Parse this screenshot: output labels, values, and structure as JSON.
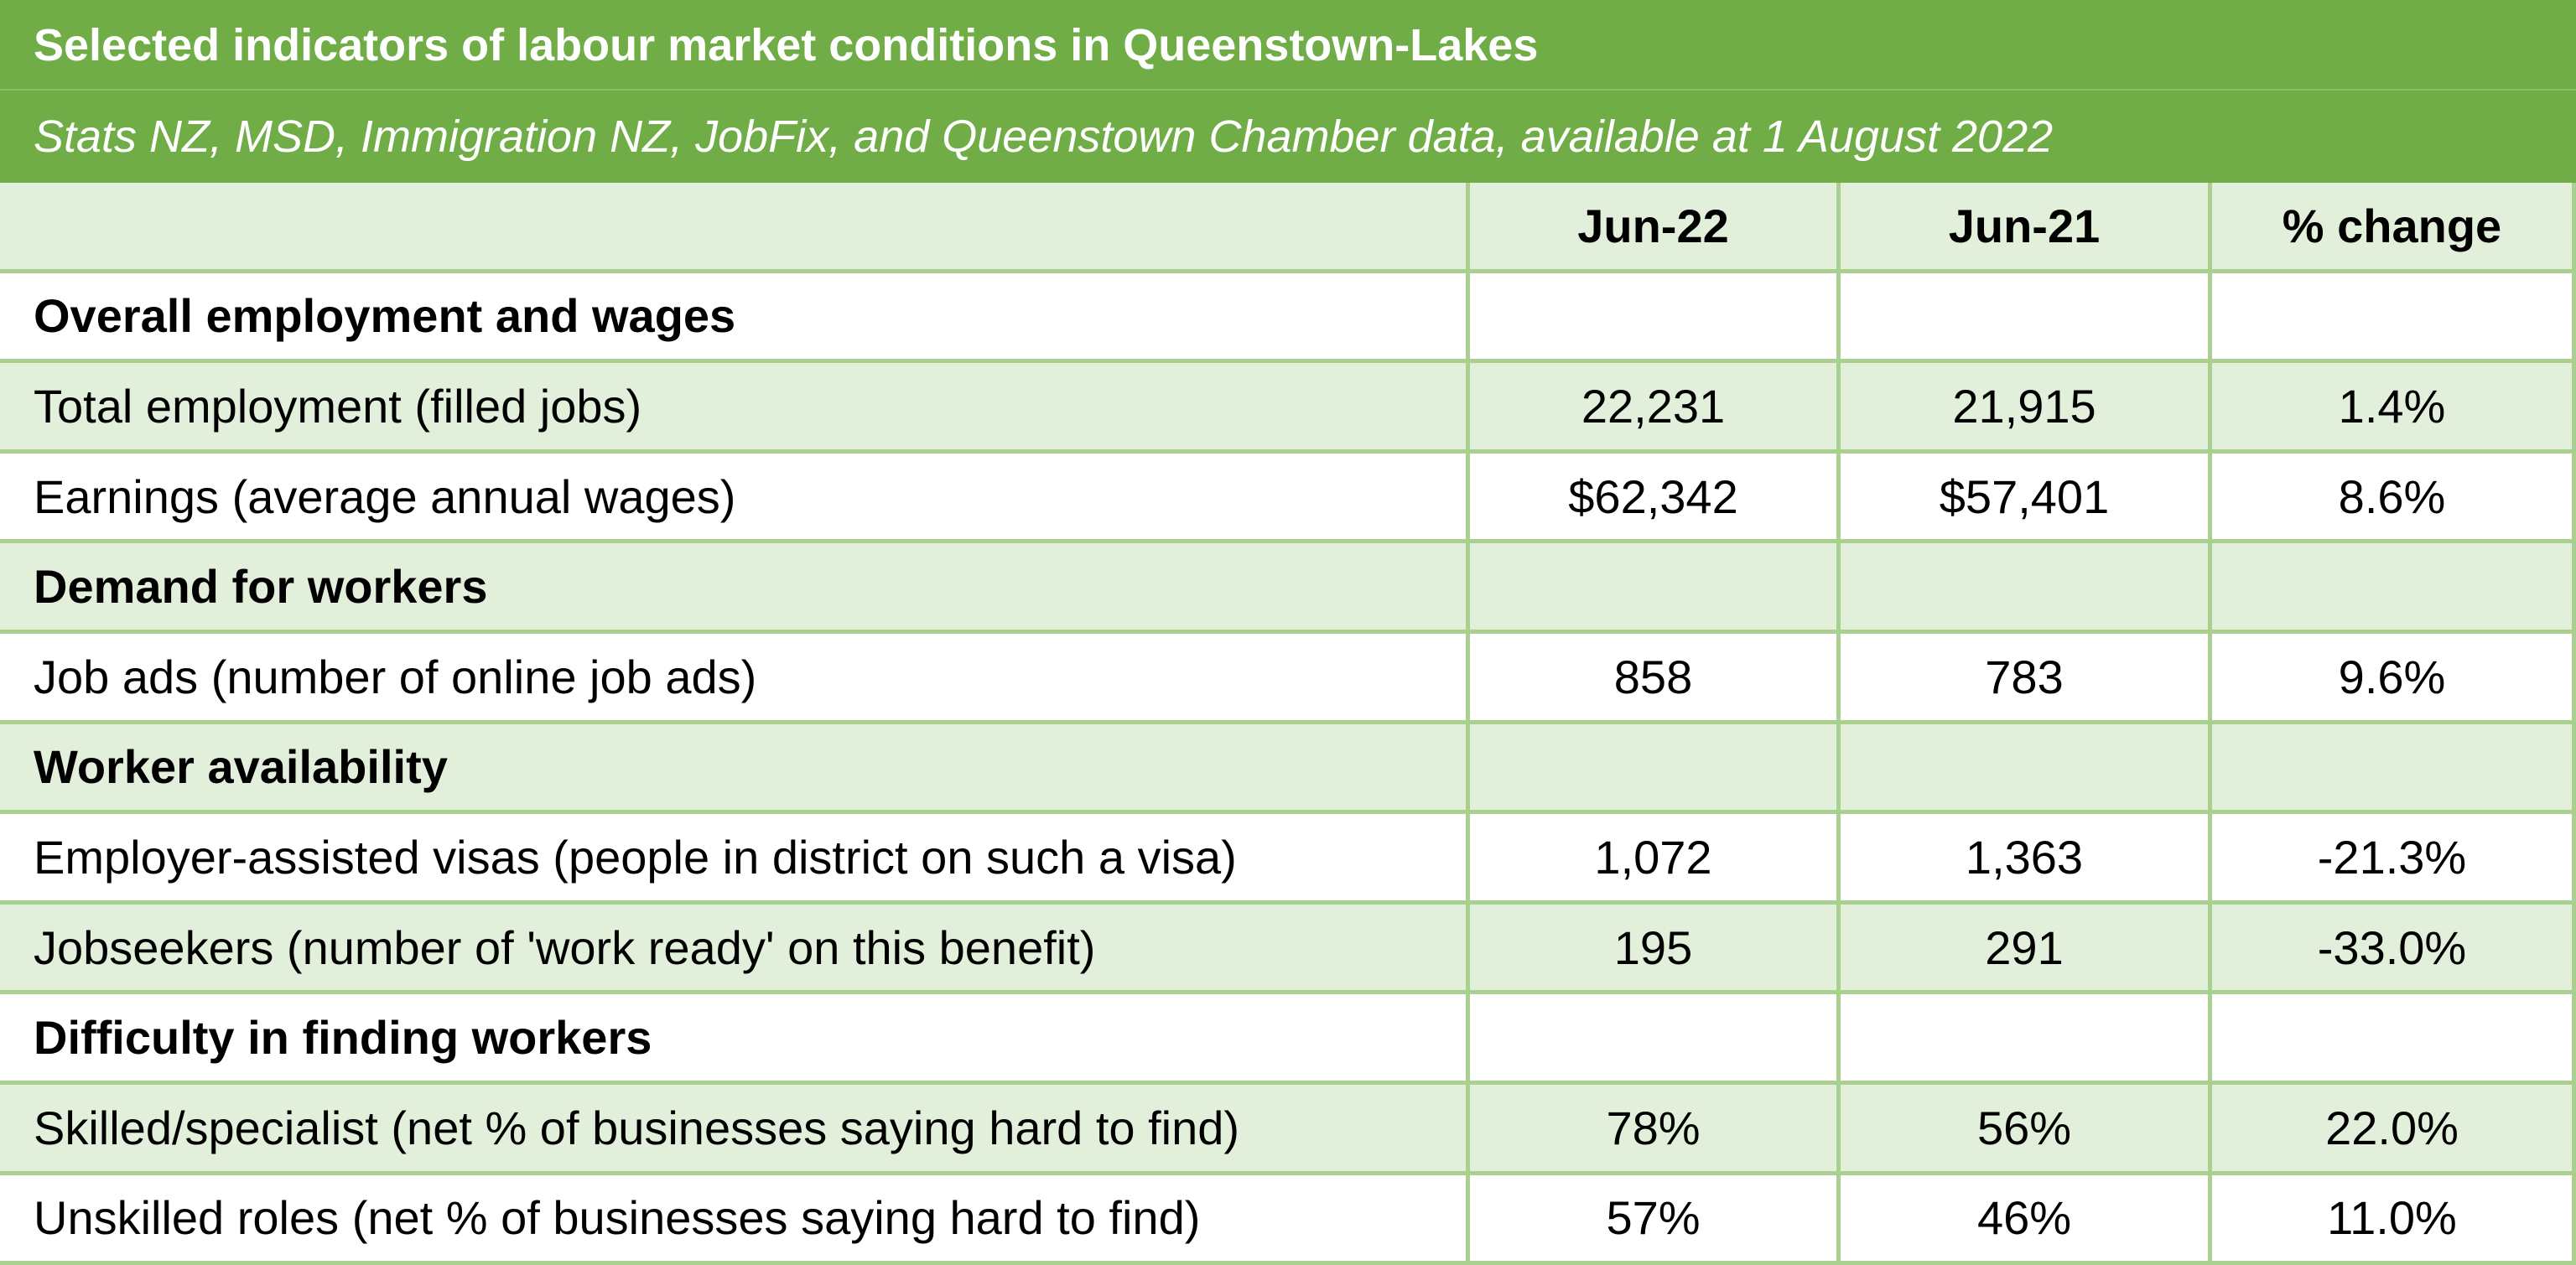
{
  "header": {
    "title": "Selected indicators of labour market conditions in Queenstown-Lakes",
    "subtitle": "Stats NZ, MSD, Immigration NZ, JobFix, and Queenstown Chamber data, available at 1 August 2022"
  },
  "table": {
    "columns": [
      "Jun-22",
      "Jun-21",
      "% change"
    ],
    "rows": [
      [
        "Overall employment and wages"
      ],
      [
        "Total employment (filled jobs)",
        "22,231",
        "21,915",
        "1.4%"
      ],
      [
        "Earnings (average annual wages)",
        "$62,342",
        "$57,401",
        "8.6%"
      ],
      [
        "Demand for workers"
      ],
      [
        "Job ads (number of online job ads)",
        "858",
        "783",
        "9.6%"
      ],
      [
        "Worker availability"
      ],
      [
        "Employer-assisted visas (people in district on such a visa)",
        "1,072",
        "1,363",
        "-21.3%"
      ],
      [
        "Jobseekers (number of 'work ready' on this benefit)",
        "195",
        "291",
        "-33.0%"
      ],
      [
        "Difficulty in finding workers"
      ],
      [
        "Skilled/specialist (net % of businesses saying hard to find)",
        "78%",
        "56%",
        "22.0%"
      ],
      [
        "Unskilled roles (net % of businesses saying hard to find)",
        "57%",
        "46%",
        "11.0%"
      ]
    ]
  }
}
